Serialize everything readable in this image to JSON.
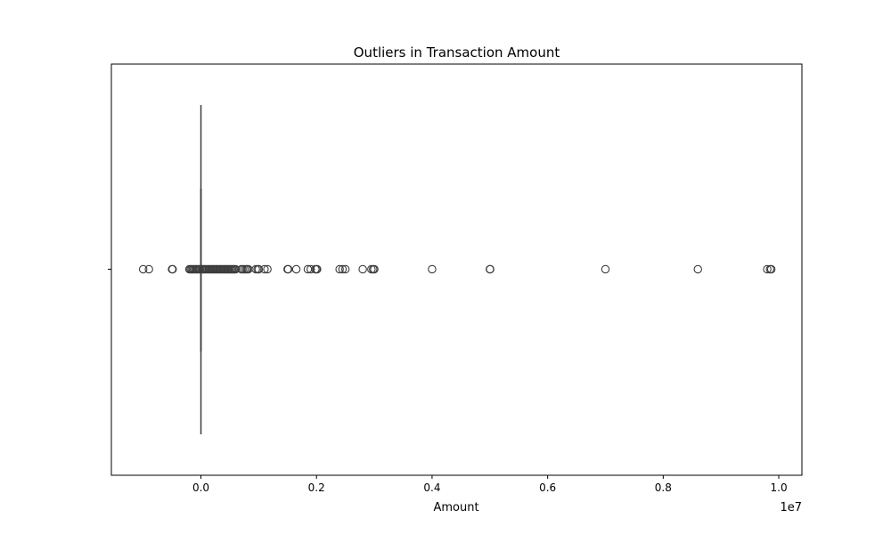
{
  "chart_data": {
    "type": "box",
    "orientation": "horizontal",
    "title": "Outliers in Transaction Amount",
    "xlabel": "Amount",
    "ylabel": "",
    "x_scale_label": "1e7",
    "xlim": [
      -1550000,
      10400000
    ],
    "xticks": [
      0,
      2000000,
      4000000,
      6000000,
      8000000,
      10000000
    ],
    "xtick_labels": [
      "0.0",
      "0.2",
      "0.4",
      "0.6",
      "0.8",
      "1.0"
    ],
    "grid": false,
    "box": {
      "whisker_low": 0,
      "whisker_high": 0,
      "median": 0,
      "q1": 0,
      "q3": 0
    },
    "outliers": [
      -1000000,
      -900000,
      -500000,
      -490000,
      -200000,
      -180000,
      -160000,
      -140000,
      -120000,
      -100000,
      -80000,
      -60000,
      -40000,
      -20000,
      20000,
      40000,
      60000,
      80000,
      100000,
      120000,
      140000,
      160000,
      180000,
      200000,
      220000,
      240000,
      260000,
      280000,
      300000,
      320000,
      340000,
      360000,
      380000,
      400000,
      420000,
      440000,
      460000,
      480000,
      500000,
      520000,
      540000,
      560000,
      580000,
      600000,
      700000,
      720000,
      750000,
      780000,
      800000,
      820000,
      950000,
      980000,
      1000000,
      1100000,
      1150000,
      1500000,
      1510000,
      1650000,
      1850000,
      1900000,
      1980000,
      2000000,
      2010000,
      2400000,
      2450000,
      2500000,
      2800000,
      2950000,
      2980000,
      3000000,
      4000000,
      5000000,
      5005000,
      7000000,
      8600000,
      9800000,
      9850000,
      9870000
    ],
    "colors": {
      "box_line": "#3d3d3d",
      "outlier_edge": "#3d3d3d",
      "outlier_fill": "none"
    }
  }
}
